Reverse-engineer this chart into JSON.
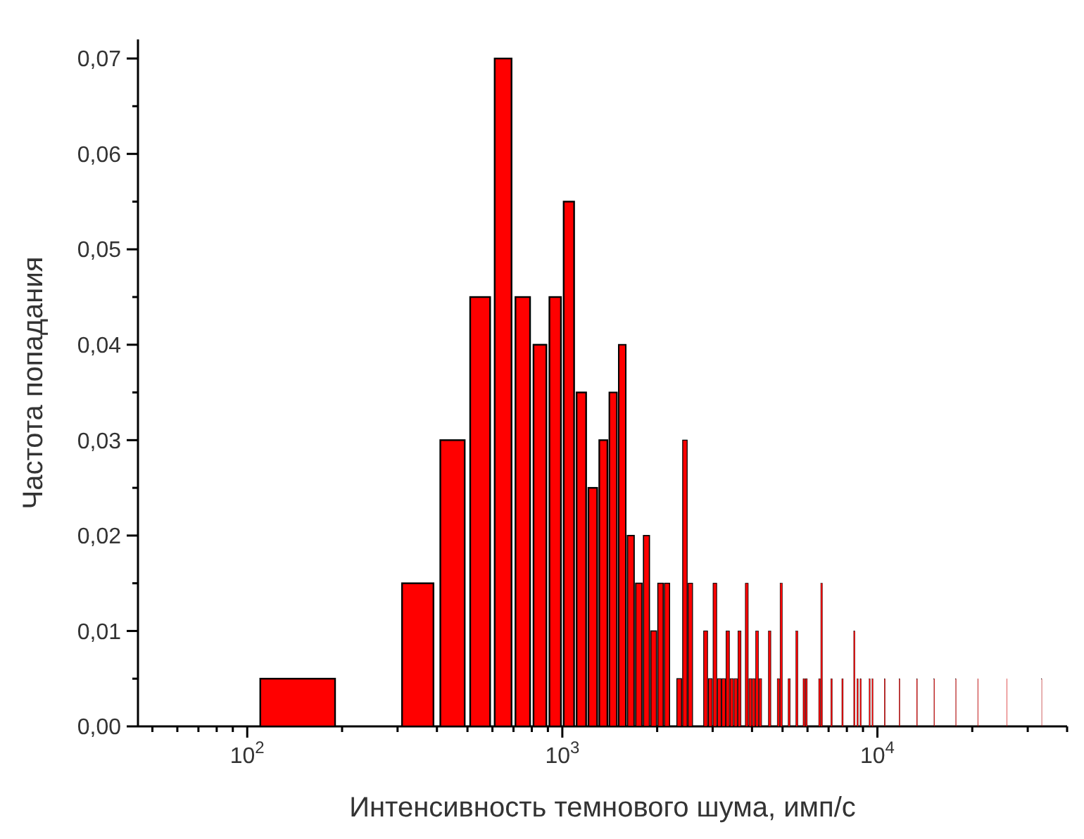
{
  "chart_data": {
    "type": "bar",
    "xlabel": "Интенсивность темнового шума, имп/с",
    "ylabel": "Частота попадания",
    "color": "#ff0000",
    "log": "x",
    "x": [
      150,
      350,
      450,
      550,
      650,
      750,
      850,
      950,
      1050,
      1150,
      1250,
      1350,
      1450,
      1550,
      1650,
      1750,
      1850,
      1950,
      2050,
      2150,
      2350,
      2450,
      2550,
      2850,
      2950,
      3050,
      3150,
      3250,
      3350,
      3450,
      3550,
      3650,
      3850,
      3950,
      4050,
      4150,
      4250,
      4550,
      4850,
      4950,
      5250,
      5550,
      5850,
      5950,
      6550,
      6650,
      7150,
      7750,
      8450,
      8650,
      8850,
      9450,
      9650,
      10550,
      11750,
      13350,
      15150,
      17750,
      20850,
      25750,
      33250
    ],
    "values": [
      0.005,
      0.015,
      0.03,
      0.045,
      0.07,
      0.045,
      0.04,
      0.045,
      0.055,
      0.035,
      0.025,
      0.03,
      0.035,
      0.04,
      0.02,
      0.015,
      0.02,
      0.01,
      0.015,
      0.015,
      0.005,
      0.03,
      0.015,
      0.01,
      0.005,
      0.015,
      0.005,
      0.005,
      0.01,
      0.005,
      0.005,
      0.01,
      0.015,
      0.005,
      0.005,
      0.01,
      0.005,
      0.01,
      0.005,
      0.015,
      0.005,
      0.01,
      0.005,
      0.005,
      0.005,
      0.015,
      0.005,
      0.005,
      0.01,
      0.005,
      0.005,
      0.005,
      0.005,
      0.005,
      0.005,
      0.005,
      0.005,
      0.005,
      0.005,
      0.005,
      0.005
    ],
    "xlim": [
      45,
      40000
    ],
    "xticks": [
      {
        "value": 50,
        "label": null
      },
      {
        "value": 60,
        "label": null
      },
      {
        "value": 70,
        "label": null
      },
      {
        "value": 80,
        "label": null
      },
      {
        "value": 90,
        "label": null
      },
      {
        "value": 100,
        "label": "10$^{2}$"
      },
      {
        "value": 200,
        "label": null
      },
      {
        "value": 300,
        "label": null
      },
      {
        "value": 400,
        "label": null
      },
      {
        "value": 500,
        "label": null
      },
      {
        "value": 600,
        "label": null
      },
      {
        "value": 700,
        "label": null
      },
      {
        "value": 800,
        "label": null
      },
      {
        "value": 900,
        "label": null
      },
      {
        "value": 1000,
        "label": "10$^{3}$"
      },
      {
        "value": 2000,
        "label": null
      },
      {
        "value": 3000,
        "label": null
      },
      {
        "value": 4000,
        "label": null
      },
      {
        "value": 5000,
        "label": null
      },
      {
        "value": 6000,
        "label": null
      },
      {
        "value": 7000,
        "label": null
      },
      {
        "value": 8000,
        "label": null
      },
      {
        "value": 9000,
        "label": null
      },
      {
        "value": 10000,
        "label": "10$^{4}$"
      },
      {
        "value": 20000,
        "label": null
      },
      {
        "value": 30000,
        "label": null
      },
      {
        "value": 40000,
        "label": null
      }
    ],
    "ylim": [
      0,
      0.072
    ],
    "yticks": [
      {
        "value": 0,
        "label": "0,00"
      },
      {
        "value": 0.005,
        "label": null
      },
      {
        "value": 0.01,
        "label": "0,01"
      },
      {
        "value": 0.015,
        "label": null
      },
      {
        "value": 0.02,
        "label": "0,02"
      },
      {
        "value": 0.025,
        "label": null
      },
      {
        "value": 0.03,
        "label": "0,03"
      },
      {
        "value": 0.035,
        "label": null
      },
      {
        "value": 0.04,
        "label": "0,04"
      },
      {
        "value": 0.045,
        "label": null
      },
      {
        "value": 0.05,
        "label": "0,05"
      },
      {
        "value": 0.055,
        "label": null
      },
      {
        "value": 0.06,
        "label": "0,06"
      },
      {
        "value": 0.065,
        "label": null
      },
      {
        "value": 0.07,
        "label": "0,07"
      }
    ]
  }
}
